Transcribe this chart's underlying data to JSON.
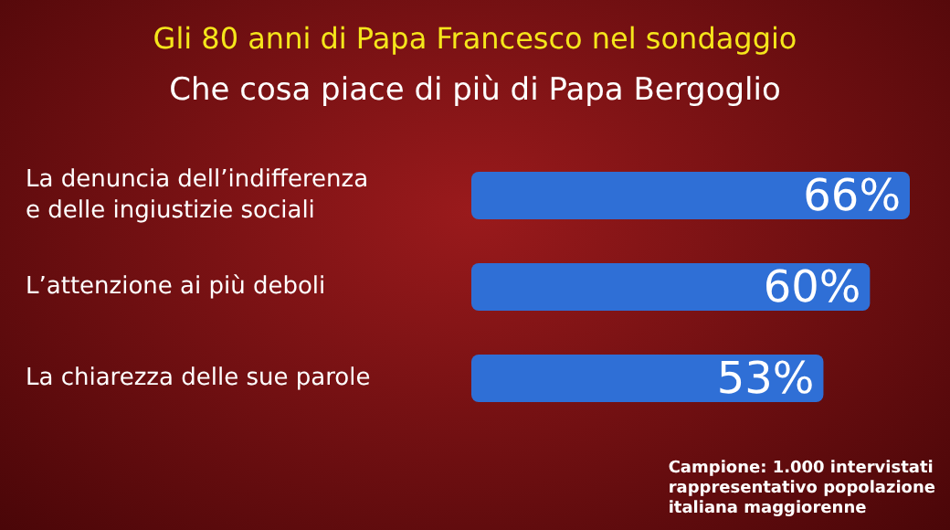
{
  "chart_data": {
    "type": "bar",
    "orientation": "horizontal",
    "title": "Gli 80 anni di Papa Francesco nel sondaggio",
    "subtitle": "Che cosa piace di più di Papa Bergoglio",
    "categories": [
      "La denuncia dell’indifferenza\ne delle ingiustizie sociali",
      "L’attenzione ai più deboli",
      "La chiarezza delle sue parole"
    ],
    "values": [
      66,
      60,
      53
    ],
    "color": "#2f6fd6",
    "value_labels": [
      "66%",
      "60%",
      "53%"
    ],
    "annotations": [
      "Campione: 1.000 intervistati\nrappresentativo popolazione\nitaliana maggiorenne"
    ]
  }
}
